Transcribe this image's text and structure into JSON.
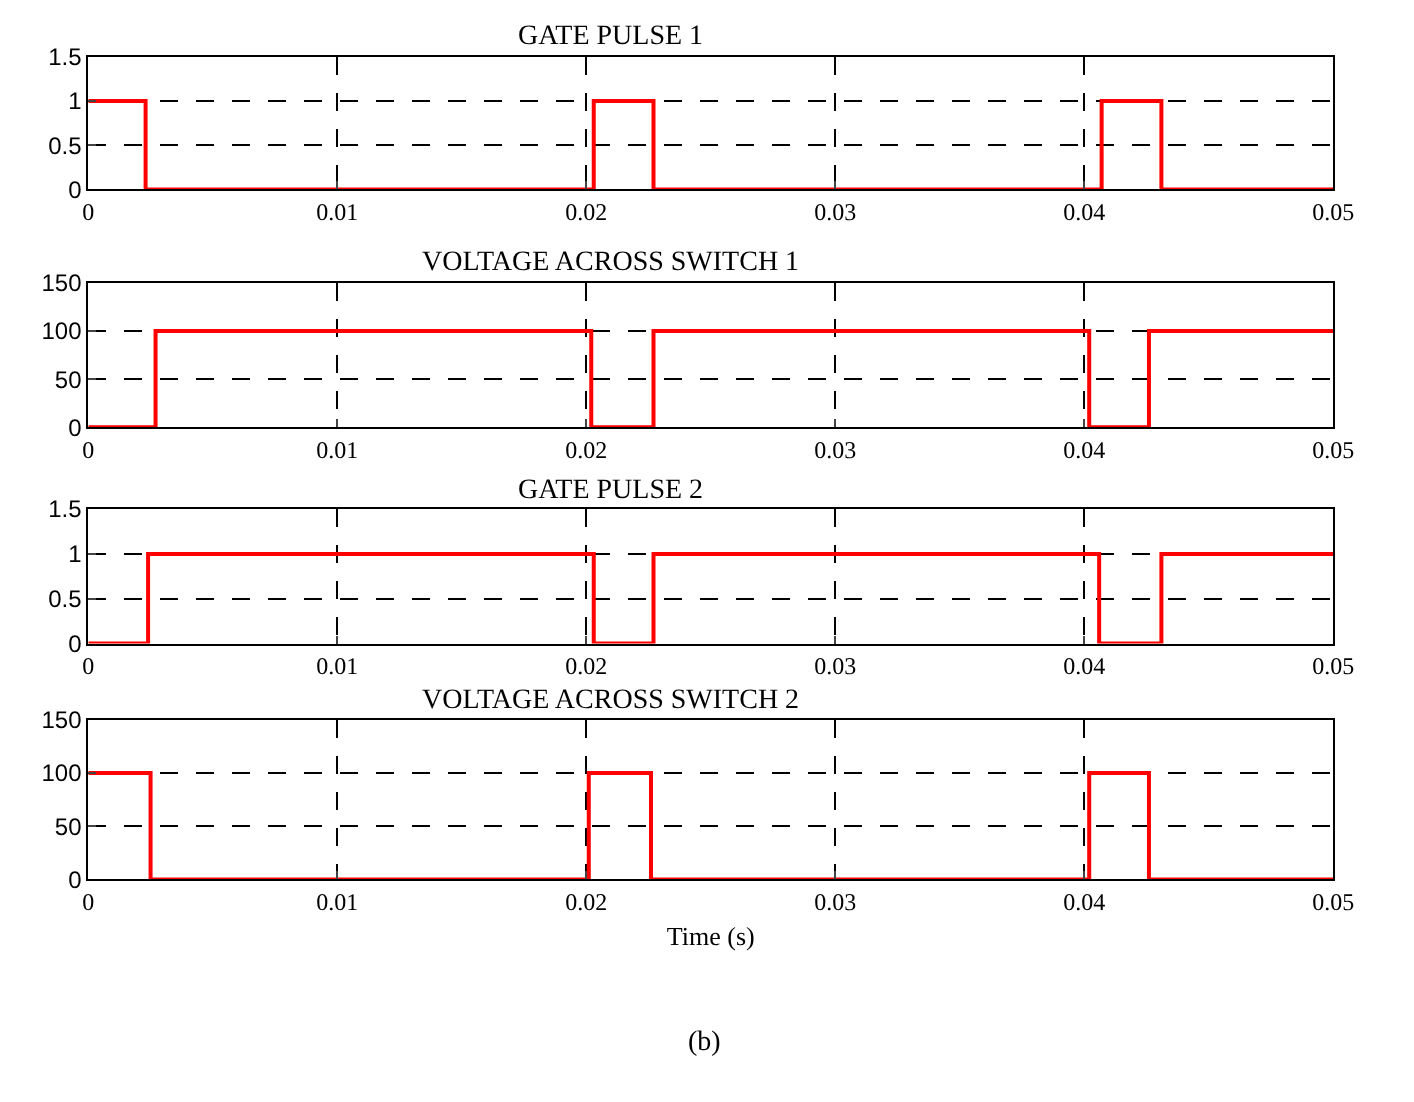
{
  "chart_data": [
    {
      "type": "step",
      "title": "GATE PULSE 1",
      "x": [
        0,
        0.0023,
        0.0203,
        0.0227,
        0.0407,
        0.0431,
        0.05
      ],
      "values": [
        1,
        0,
        1,
        0,
        1,
        0,
        0
      ],
      "color": "#ff0000",
      "xlim": [
        0,
        0.05
      ],
      "xticks": [
        0,
        0.01,
        0.02,
        0.03,
        0.04,
        0.05
      ],
      "ylim": [
        0,
        1.5
      ],
      "yticks": [
        0,
        0.5,
        1,
        1.5
      ],
      "grid": true
    },
    {
      "type": "step",
      "title": "VOLTAGE ACROSS SWITCH 1",
      "x": [
        0,
        0.0027,
        0.0202,
        0.0227,
        0.0402,
        0.0426,
        0.05
      ],
      "values": [
        0,
        100,
        0,
        100,
        0,
        100,
        100
      ],
      "color": "#ff0000",
      "xlim": [
        0,
        0.05
      ],
      "xticks": [
        0,
        0.01,
        0.02,
        0.03,
        0.04,
        0.05
      ],
      "ylim": [
        0,
        150
      ],
      "yticks": [
        0,
        50,
        100,
        150
      ],
      "grid": true
    },
    {
      "type": "step",
      "title": "GATE PULSE 2",
      "x": [
        0,
        0.0024,
        0.0203,
        0.0227,
        0.0406,
        0.0431,
        0.05
      ],
      "values": [
        0,
        1,
        0,
        1,
        0,
        1,
        1
      ],
      "color": "#ff0000",
      "xlim": [
        0,
        0.05
      ],
      "xticks": [
        0,
        0.01,
        0.02,
        0.03,
        0.04,
        0.05
      ],
      "ylim": [
        0,
        1.5
      ],
      "yticks": [
        0,
        0.5,
        1,
        1.5
      ],
      "grid": true
    },
    {
      "type": "step",
      "title": "VOLTAGE ACROSS SWITCH 2",
      "xlabel": "Time (s)",
      "x": [
        0,
        0.0025,
        0.0201,
        0.0226,
        0.0402,
        0.0426,
        0.05
      ],
      "values": [
        100,
        0,
        100,
        0,
        100,
        0,
        0
      ],
      "color": "#ff0000",
      "xlim": [
        0,
        0.05
      ],
      "xticks": [
        0,
        0.01,
        0.02,
        0.03,
        0.04,
        0.05
      ],
      "ylim": [
        0,
        150
      ],
      "yticks": [
        0,
        50,
        100,
        150
      ],
      "grid": true,
      "annotations": [
        "(b)"
      ]
    }
  ]
}
